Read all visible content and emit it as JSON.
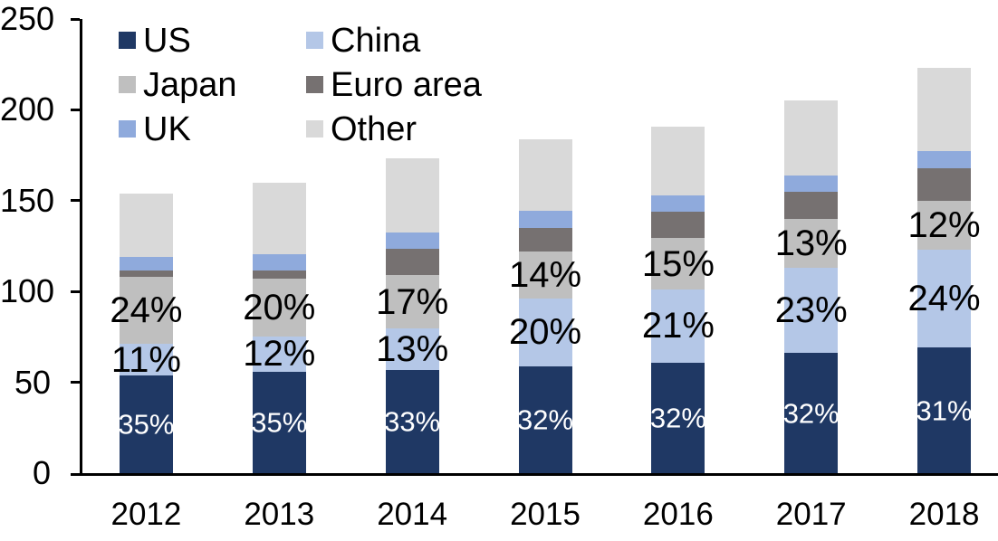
{
  "chart_data": {
    "type": "bar",
    "variant": "stacked",
    "title": "",
    "xlabel": "",
    "ylabel": "",
    "categories": [
      "2012",
      "2013",
      "2014",
      "2015",
      "2016",
      "2017",
      "2018"
    ],
    "series": [
      {
        "name": "US",
        "color": "#1f3864",
        "values": [
          54,
          56,
          57,
          59,
          61,
          66,
          69
        ],
        "labels": [
          "35%",
          "35%",
          "33%",
          "32%",
          "32%",
          "32%",
          "31%"
        ],
        "label_color": "#ffffff"
      },
      {
        "name": "China",
        "color": "#b4c7e7",
        "values": [
          17,
          19,
          22.5,
          37,
          40,
          47,
          54
        ],
        "labels": [
          "11%",
          "12%",
          "13%",
          "20%",
          "21%",
          "23%",
          "24%"
        ],
        "label_color": "#000000"
      },
      {
        "name": "Japan",
        "color": "#bfbfbf",
        "values": [
          37,
          32,
          29.5,
          26,
          28.5,
          27,
          27
        ],
        "labels": [
          "24%",
          "20%",
          "17%",
          "14%",
          "15%",
          "13%",
          "12%"
        ],
        "label_color": "#000000"
      },
      {
        "name": "Euro area",
        "color": "#767171",
        "values": [
          3.5,
          4.5,
          14.5,
          13,
          14.5,
          15,
          18
        ],
        "labels": null,
        "label_color": null
      },
      {
        "name": "UK",
        "color": "#8faadc",
        "values": [
          7.5,
          9,
          9,
          9.5,
          9,
          9,
          9.5
        ],
        "labels": null,
        "label_color": null
      },
      {
        "name": "Other",
        "color": "#d9d9d9",
        "values": [
          35,
          39.5,
          41,
          39.5,
          38,
          41,
          45.5
        ],
        "labels": null,
        "label_color": null
      }
    ],
    "totals": [
      154,
      160,
      173.5,
      184,
      191,
      205,
      223
    ],
    "ylim": [
      0,
      250
    ],
    "yticks": [
      0,
      50,
      100,
      150,
      200,
      250
    ],
    "grid": false,
    "legend_position": "top-left",
    "legend_columns": 2,
    "axis_color": "#000000"
  }
}
